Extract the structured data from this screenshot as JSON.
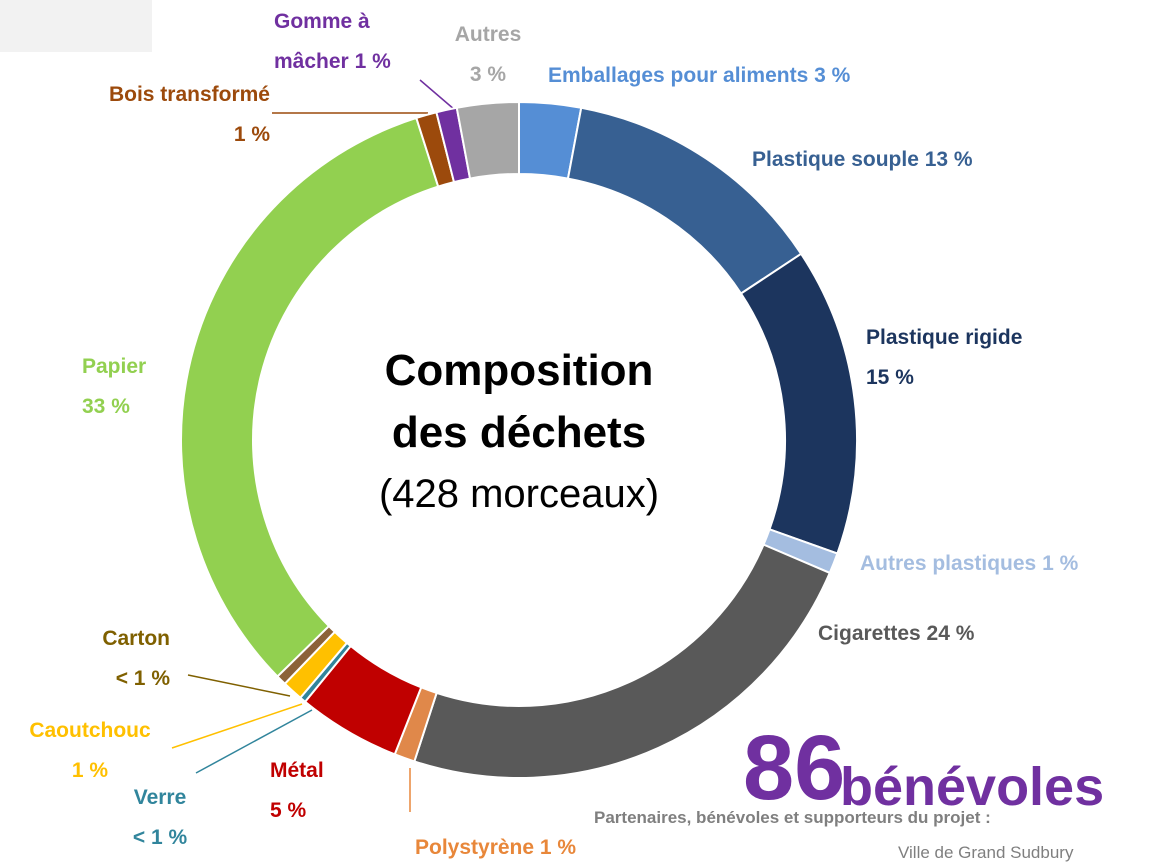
{
  "chart_data": {
    "type": "donut",
    "title": "Composition des déchets",
    "subtitle": "(428 morceaux)",
    "categories": [
      "Emballages pour aliments",
      "Plastique souple",
      "Plastique rigide",
      "Autres plastiques",
      "Cigarettes",
      "Polystyrène",
      "Métal",
      "Verre",
      "Caoutchouc",
      "Carton",
      "Papier",
      "Bois transformé",
      "Gomme à mâcher",
      "Autres"
    ],
    "values": [
      3,
      13,
      15,
      1,
      24,
      1,
      5,
      0.3,
      1,
      0.5,
      33,
      1,
      1,
      3
    ],
    "value_labels": [
      "3 %",
      "13 %",
      "15 %",
      "1 %",
      "24 %",
      "1 %",
      "5 %",
      "< 1 %",
      "1 %",
      "< 1 %",
      "33 %",
      "1 %",
      "1 %",
      "3 %"
    ],
    "colors": [
      "#558ed5",
      "#376092",
      "#1c355e",
      "#a4bde0",
      "#595959",
      "#e0884a",
      "#c00000",
      "#31859c",
      "#ffc000",
      "#8c6239",
      "#92d050",
      "#9c4a0c",
      "#7030a0",
      "#a6a6a6"
    ],
    "label_colors": [
      "#558ed5",
      "#376092",
      "#1c355e",
      "#a4bde0",
      "#595959",
      "#e8873a",
      "#c00000",
      "#31859c",
      "#ffc000",
      "#7f6000",
      "#92d050",
      "#9c4a0c",
      "#7030a0",
      "#a6a6a6"
    ],
    "annotations": {
      "count": "86",
      "count_label": "bénévoles",
      "note": "Partenaires, bénévoles et supporteurs du projet :",
      "footer": "Ville de Grand Sudbury"
    }
  }
}
